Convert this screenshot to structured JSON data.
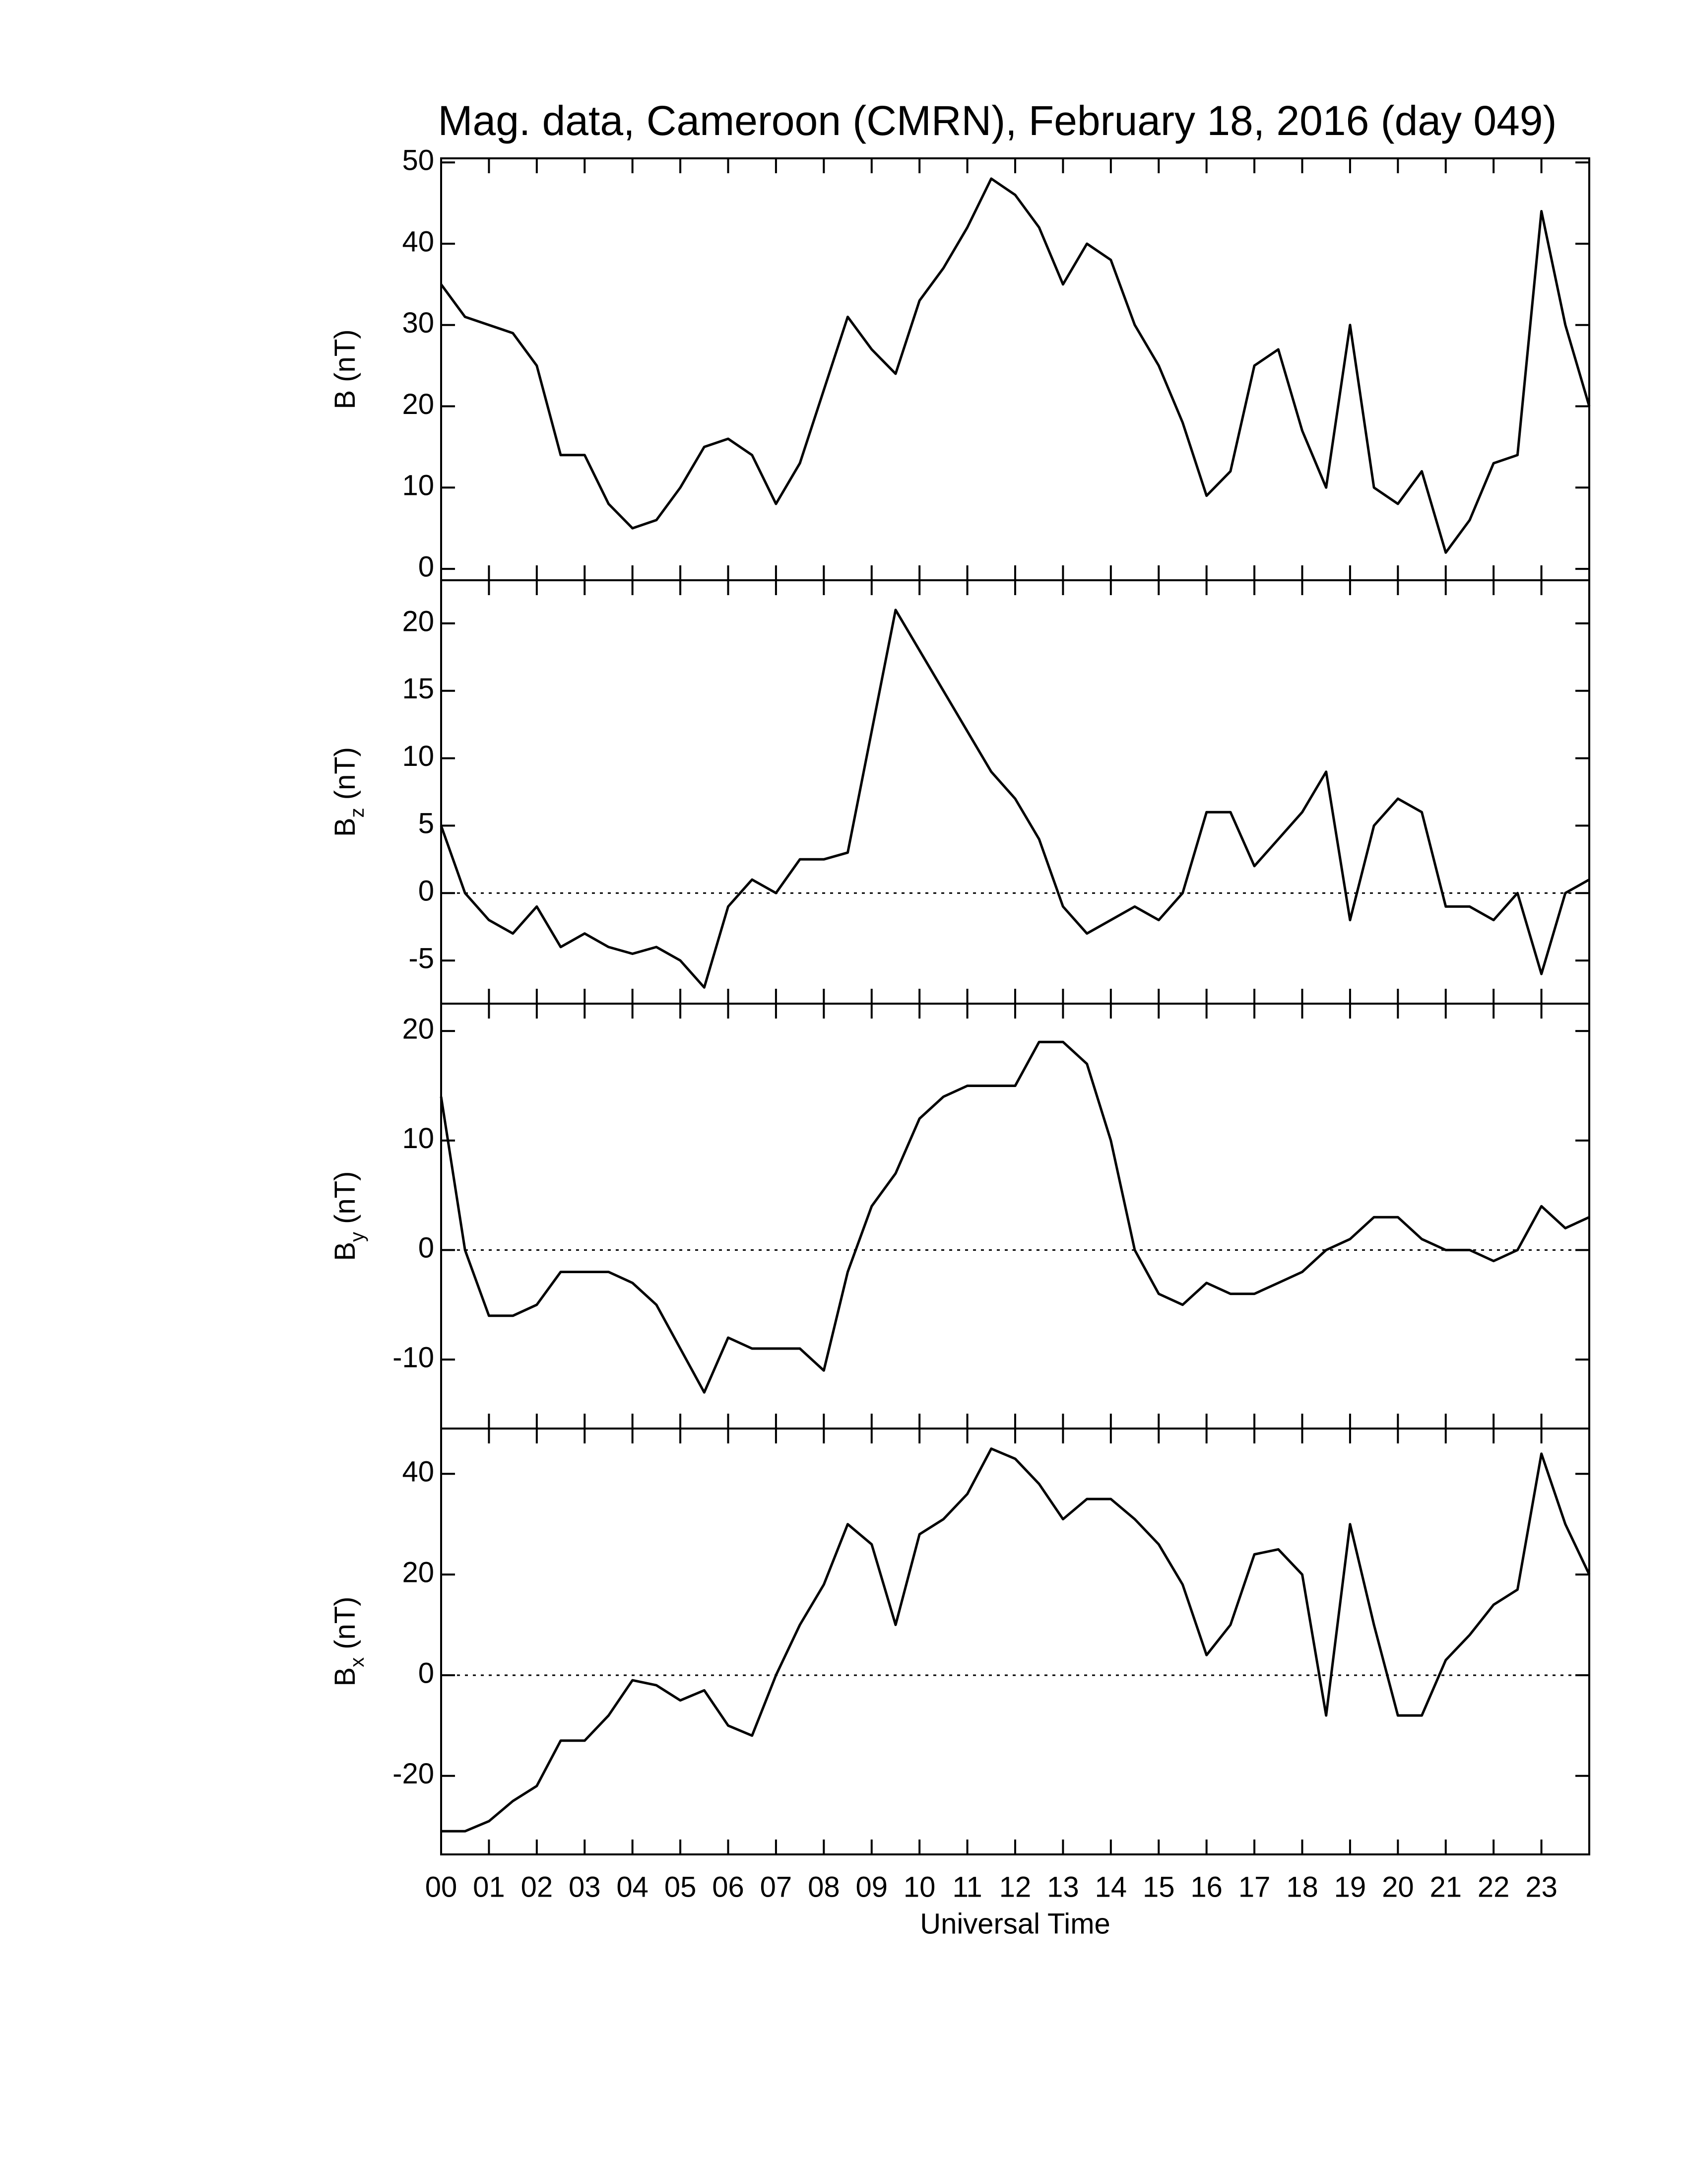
{
  "chart_data": [
    {
      "type": "line",
      "title": "Mag. data, Cameroon (CMRN), February 18, 2016 (day 049)",
      "ylabel": {
        "symbol": "B",
        "unit": "(nT)"
      },
      "x": [
        0,
        0.5,
        1,
        1.5,
        2,
        2.5,
        3,
        3.5,
        4,
        4.5,
        5,
        5.5,
        6,
        6.5,
        7,
        7.5,
        8,
        8.5,
        9,
        9.5,
        10,
        10.5,
        11,
        11.5,
        12,
        12.5,
        13,
        13.5,
        14,
        14.5,
        15,
        15.5,
        16,
        16.5,
        17,
        17.5,
        18,
        18.5,
        19,
        19.5,
        20,
        20.5,
        21,
        21.5,
        22,
        22.5,
        23,
        23.5,
        24
      ],
      "series": [
        {
          "color": "#000000",
          "values": [
            35,
            31,
            30,
            29,
            25,
            14,
            14,
            8,
            5,
            6,
            10,
            15,
            16,
            14,
            8,
            13,
            22,
            31,
            27,
            24,
            33,
            37,
            42,
            48,
            46,
            42,
            35,
            40,
            38,
            30,
            25,
            18,
            9,
            12,
            25,
            27,
            17,
            10,
            30,
            10,
            8,
            12,
            2,
            6,
            13,
            14,
            44,
            30,
            20
          ]
        }
      ],
      "xlim": [
        0,
        24
      ],
      "ylim": [
        -1.4,
        50.5
      ],
      "yticks": [
        0,
        10,
        20,
        30,
        40,
        50
      ],
      "zero_line": false
    },
    {
      "type": "line",
      "ylabel": {
        "symbol": "B",
        "sub": "z",
        "unit": "(nT)"
      },
      "x": [
        0,
        0.5,
        1,
        1.5,
        2,
        2.5,
        3,
        3.5,
        4,
        4.5,
        5,
        5.5,
        6,
        6.5,
        7,
        7.5,
        8,
        8.5,
        9,
        9.5,
        10,
        10.5,
        11,
        11.5,
        12,
        12.5,
        13,
        13.5,
        14,
        14.5,
        15,
        15.5,
        16,
        16.5,
        17,
        17.5,
        18,
        18.5,
        19,
        19.5,
        20,
        20.5,
        21,
        21.5,
        22,
        22.5,
        23,
        23.5,
        24
      ],
      "series": [
        {
          "color": "#000000",
          "values": [
            5,
            0,
            -2,
            -3,
            -1,
            -4,
            -3,
            -4,
            -4.5,
            -4,
            -5,
            -7,
            -1,
            1,
            0,
            2.5,
            2.5,
            3,
            12,
            21,
            18,
            15,
            12,
            9,
            7,
            4,
            -1,
            -3,
            -2,
            -1,
            -2,
            0,
            6,
            6,
            2,
            4,
            6,
            9,
            -2,
            5,
            7,
            6,
            -1,
            -1,
            -2,
            0,
            -6,
            0,
            1
          ]
        }
      ],
      "xlim": [
        0,
        24
      ],
      "ylim": [
        -8.2,
        23.2
      ],
      "yticks": [
        -5,
        0,
        5,
        10,
        15,
        20
      ],
      "zero_line": true
    },
    {
      "type": "line",
      "ylabel": {
        "symbol": "B",
        "sub": "y",
        "unit": "(nT)"
      },
      "x": [
        0,
        0.5,
        1,
        1.5,
        2,
        2.5,
        3,
        3.5,
        4,
        4.5,
        5,
        5.5,
        6,
        6.5,
        7,
        7.5,
        8,
        8.5,
        9,
        9.5,
        10,
        10.5,
        11,
        11.5,
        12,
        12.5,
        13,
        13.5,
        14,
        14.5,
        15,
        15.5,
        16,
        16.5,
        17,
        17.5,
        18,
        18.5,
        19,
        19.5,
        20,
        20.5,
        21,
        21.5,
        22,
        22.5,
        23,
        23.5,
        24
      ],
      "series": [
        {
          "color": "#000000",
          "values": [
            14,
            0,
            -6,
            -6,
            -5,
            -2,
            -2,
            -2,
            -3,
            -5,
            -9,
            -13,
            -8,
            -9,
            -9,
            -9,
            -11,
            -2,
            4,
            7,
            12,
            14,
            15,
            15,
            15,
            19,
            19,
            17,
            10,
            0,
            -4,
            -5,
            -3,
            -4,
            -4,
            -3,
            -2,
            0,
            1,
            3,
            3,
            1,
            0,
            0,
            -1,
            0,
            4,
            2,
            3
          ]
        }
      ],
      "xlim": [
        0,
        24
      ],
      "ylim": [
        -16.3,
        22.5
      ],
      "yticks": [
        -10,
        0,
        10,
        20
      ],
      "zero_line": true
    },
    {
      "type": "line",
      "ylabel": {
        "symbol": "B",
        "sub": "x",
        "unit": "(nT)"
      },
      "xlabel": "Universal Time",
      "x": [
        0,
        0.5,
        1,
        1.5,
        2,
        2.5,
        3,
        3.5,
        4,
        4.5,
        5,
        5.5,
        6,
        6.5,
        7,
        7.5,
        8,
        8.5,
        9,
        9.5,
        10,
        10.5,
        11,
        11.5,
        12,
        12.5,
        13,
        13.5,
        14,
        14.5,
        15,
        15.5,
        16,
        16.5,
        17,
        17.5,
        18,
        18.5,
        19,
        19.5,
        20,
        20.5,
        21,
        21.5,
        22,
        22.5,
        23,
        23.5,
        24
      ],
      "series": [
        {
          "color": "#000000",
          "values": [
            -31,
            -31,
            -29,
            -25,
            -22,
            -13,
            -13,
            -8,
            -1,
            -2,
            -5,
            -3,
            -10,
            -12,
            0,
            10,
            18,
            30,
            26,
            10,
            28,
            31,
            36,
            45,
            43,
            38,
            31,
            35,
            35,
            31,
            26,
            18,
            4,
            10,
            24,
            25,
            20,
            -8,
            30,
            10,
            -8,
            -8,
            3,
            8,
            14,
            17,
            44,
            30,
            20
          ]
        }
      ],
      "xlim": [
        0,
        24
      ],
      "ylim": [
        -35.6,
        49
      ],
      "yticks": [
        -20,
        0,
        20,
        40
      ],
      "zero_line": true,
      "xticks": [
        {
          "value": 0,
          "label": "00"
        },
        {
          "value": 1,
          "label": "01"
        },
        {
          "value": 2,
          "label": "02"
        },
        {
          "value": 3,
          "label": "03"
        },
        {
          "value": 4,
          "label": "04"
        },
        {
          "value": 5,
          "label": "05"
        },
        {
          "value": 6,
          "label": "06"
        },
        {
          "value": 7,
          "label": "07"
        },
        {
          "value": 8,
          "label": "08"
        },
        {
          "value": 9,
          "label": "09"
        },
        {
          "value": 10,
          "label": "10"
        },
        {
          "value": 11,
          "label": "11"
        },
        {
          "value": 12,
          "label": "12"
        },
        {
          "value": 13,
          "label": "13"
        },
        {
          "value": 14,
          "label": "14"
        },
        {
          "value": 15,
          "label": "15"
        },
        {
          "value": 16,
          "label": "16"
        },
        {
          "value": 17,
          "label": "17"
        },
        {
          "value": 18,
          "label": "18"
        },
        {
          "value": 19,
          "label": "19"
        },
        {
          "value": 20,
          "label": "20"
        },
        {
          "value": 21,
          "label": "21"
        },
        {
          "value": 22,
          "label": "22"
        },
        {
          "value": 23,
          "label": "23"
        }
      ]
    }
  ]
}
